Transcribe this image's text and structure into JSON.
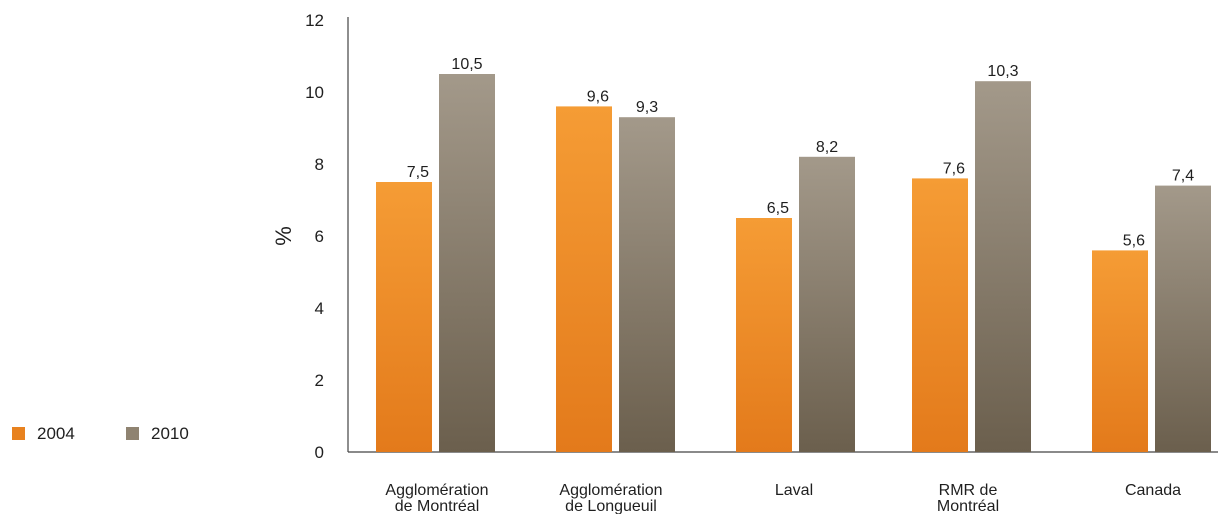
{
  "chart_data": {
    "type": "bar",
    "title": "",
    "xlabel": "",
    "ylabel": "%",
    "ylim": [
      0,
      12
    ],
    "yticks": [
      "0",
      "2",
      "4",
      "6",
      "8",
      "10",
      "12"
    ],
    "grid": false,
    "legend_position": "left",
    "categories": [
      [
        "Agglomération",
        "de Montréal"
      ],
      [
        "Agglomération",
        "de Longueuil"
      ],
      [
        "Laval"
      ],
      [
        "RMR de",
        "Montréal"
      ],
      [
        "Canada"
      ]
    ],
    "series": [
      {
        "name": "2004",
        "color": "#e8821f",
        "values": [
          7.5,
          9.6,
          6.5,
          7.6,
          5.6
        ],
        "labels": [
          "7,5",
          "9,6",
          "6,5",
          "7,6",
          "5,6"
        ]
      },
      {
        "name": "2010",
        "color": "#8f8371",
        "values": [
          10.5,
          9.3,
          8.2,
          10.3,
          7.4
        ],
        "labels": [
          "10,5",
          "9,3",
          "8,2",
          "10,3",
          "7,4"
        ]
      }
    ]
  }
}
